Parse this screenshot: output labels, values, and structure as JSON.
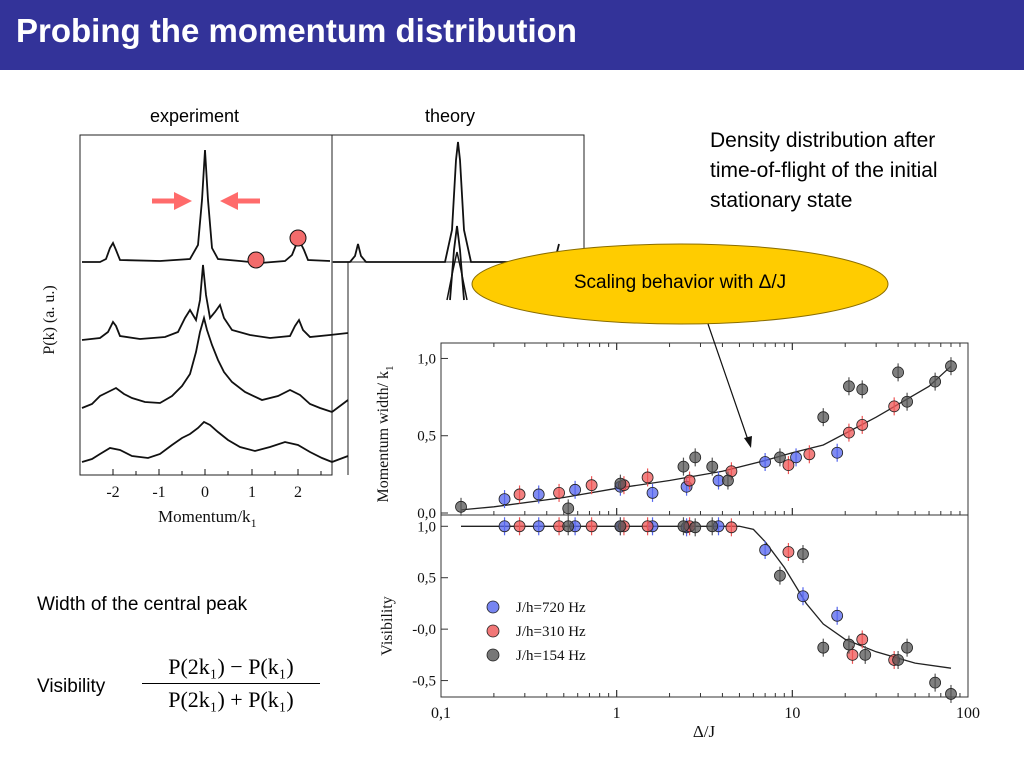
{
  "slide": {
    "title": "Probing the momentum distribution",
    "density_text": [
      "Density distribution after",
      "time-of-flight of the initial",
      "stationary state"
    ],
    "width_label": "Width of the central peak",
    "visibility_label": "Visibility",
    "formula_numerator": "P(2k₁) − P(k₁)",
    "formula_denominator": "P(2k₁) + P(k₁)",
    "callout": "Scaling behavior with Δ/J",
    "colors": {
      "title_bar": "#333399",
      "callout_fill": "#ffcc00",
      "arrow": "#ff6b6b",
      "marker": "#f26b6b"
    }
  },
  "chart_data": [
    {
      "type": "line",
      "panel_label": "experiment",
      "xlabel": "Momentum/k",
      "xlabel_sub": "1",
      "ylabel": "P(k) (a. u.)",
      "x_ticks": [
        "-2",
        "-1",
        "0",
        "1",
        "2"
      ],
      "xlim": [
        -2.6,
        2.8
      ],
      "curves": 4,
      "annotations": [
        "two arrows pointing at central peak",
        "circle markers at k=1 and k=2"
      ]
    },
    {
      "type": "line",
      "panel_label": "theory",
      "curves": 4
    },
    {
      "type": "scatter",
      "xscale": "log",
      "xlim": [
        0.1,
        100
      ],
      "ylim": [
        0.0,
        1.1
      ],
      "ylabel": "Momentum width/ k",
      "ylabel_sub": "1",
      "y_ticks": [
        "0,0",
        "0,5",
        "1,0"
      ],
      "y_tick_values": [
        0.0,
        0.5,
        1.0
      ],
      "series": [
        {
          "name": "J/h=720 Hz",
          "color": "#5566ee",
          "x": [
            0.23,
            0.36,
            0.58,
            1.05,
            1.6,
            2.5,
            3.8,
            7.0,
            10.5,
            18
          ],
          "y": [
            0.09,
            0.12,
            0.15,
            0.17,
            0.13,
            0.17,
            0.21,
            0.33,
            0.36,
            0.39
          ]
        },
        {
          "name": "J/h=310 Hz",
          "color": "#ee5555",
          "x": [
            0.28,
            0.47,
            0.72,
            1.1,
            1.5,
            2.6,
            4.5,
            9.5,
            12.5,
            21,
            25,
            38
          ],
          "y": [
            0.12,
            0.13,
            0.18,
            0.18,
            0.23,
            0.21,
            0.27,
            0.31,
            0.38,
            0.52,
            0.57,
            0.69
          ]
        },
        {
          "name": "J/h=154 Hz",
          "color": "#555555",
          "x": [
            0.13,
            0.53,
            1.05,
            2.4,
            2.8,
            3.5,
            4.3,
            8.5,
            15,
            21,
            25,
            40,
            45,
            65,
            80
          ],
          "y": [
            0.04,
            0.03,
            0.19,
            0.3,
            0.36,
            0.3,
            0.21,
            0.36,
            0.62,
            0.82,
            0.8,
            0.91,
            0.72,
            0.85,
            0.95
          ]
        }
      ],
      "fit_line": {
        "x": [
          0.13,
          0.2,
          0.5,
          1,
          2,
          4,
          7,
          10,
          15,
          30,
          60,
          80
        ],
        "y": [
          0.02,
          0.04,
          0.1,
          0.16,
          0.21,
          0.27,
          0.34,
          0.39,
          0.44,
          0.62,
          0.82,
          0.95
        ]
      }
    },
    {
      "type": "scatter",
      "xscale": "log",
      "xlim": [
        0.1,
        100
      ],
      "ylim": [
        -0.65,
        1.1
      ],
      "xlabel": "Δ/J",
      "ylabel": "Visibility",
      "x_ticks": [
        "0,1",
        "1",
        "10",
        "100"
      ],
      "x_tick_values": [
        0.1,
        1,
        10,
        100
      ],
      "y_ticks": [
        "-0,5",
        "-0,0",
        "0,5",
        "1,0"
      ],
      "y_tick_values": [
        -0.5,
        0.0,
        0.5,
        1.0
      ],
      "series": [
        {
          "name": "J/h=720 Hz",
          "color": "#5566ee",
          "x": [
            0.23,
            0.36,
            0.58,
            1.05,
            1.6,
            2.5,
            3.8,
            7.0,
            11.5,
            18
          ],
          "y": [
            1.0,
            1.0,
            1.0,
            1.0,
            1.0,
            0.99,
            1.0,
            0.77,
            0.32,
            0.13
          ]
        },
        {
          "name": "J/h=310 Hz",
          "color": "#ee5555",
          "x": [
            0.28,
            0.47,
            0.72,
            1.1,
            1.5,
            2.6,
            4.5,
            9.5,
            22,
            25,
            38
          ],
          "y": [
            1.0,
            1.0,
            1.0,
            1.0,
            1.0,
            1.0,
            0.99,
            0.75,
            -0.25,
            -0.1,
            -0.3
          ]
        },
        {
          "name": "J/h=154 Hz",
          "color": "#555555",
          "x": [
            0.53,
            1.05,
            2.4,
            2.8,
            3.5,
            8.5,
            11.5,
            15,
            21,
            26,
            40,
            45,
            65,
            80
          ],
          "y": [
            1.0,
            1.0,
            1.0,
            0.99,
            1.0,
            0.52,
            0.73,
            -0.18,
            -0.15,
            -0.25,
            -0.3,
            -0.18,
            -0.52,
            -0.63
          ]
        }
      ],
      "fit_line": {
        "x": [
          0.13,
          1,
          3,
          5,
          6,
          7,
          9,
          12,
          15,
          20,
          30,
          50,
          80
        ],
        "y": [
          1.0,
          1.0,
          1.0,
          1.0,
          0.97,
          0.85,
          0.6,
          0.25,
          0.05,
          -0.1,
          -0.22,
          -0.33,
          -0.38
        ]
      },
      "legend_position": "lower-left"
    }
  ]
}
